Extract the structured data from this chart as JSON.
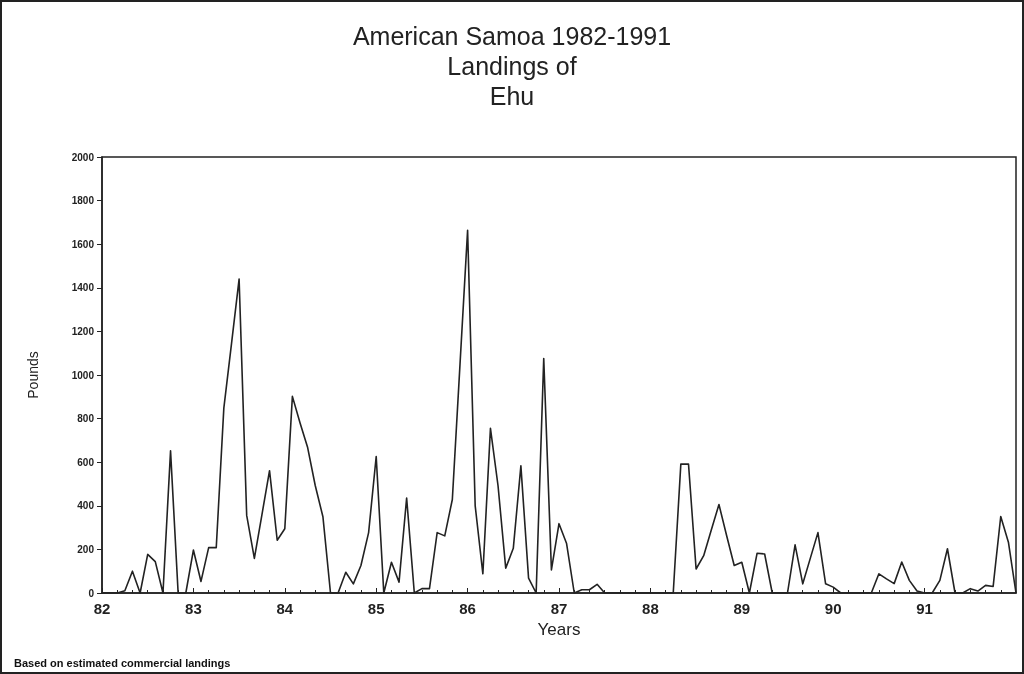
{
  "chart_data": {
    "type": "line",
    "title": "American Samoa 1982-1991\nLandings of\nEhu",
    "xlabel": "Years",
    "ylabel": "Pounds",
    "annotations": [
      "Based on estimated commercial landings"
    ],
    "x": [
      82,
      82.083,
      82.167,
      82.25,
      82.333,
      82.417,
      82.5,
      82.583,
      82.667,
      82.75,
      82.833,
      82.917,
      83,
      83.083,
      83.167,
      83.25,
      83.333,
      83.417,
      83.5,
      83.583,
      83.667,
      83.75,
      83.833,
      83.917,
      84,
      84.083,
      84.167,
      84.25,
      84.333,
      84.417,
      84.5,
      84.583,
      84.667,
      84.75,
      84.833,
      84.917,
      85,
      85.083,
      85.167,
      85.25,
      85.333,
      85.417,
      85.5,
      85.583,
      85.667,
      85.75,
      85.833,
      85.917,
      86,
      86.083,
      86.167,
      86.25,
      86.333,
      86.417,
      86.5,
      86.583,
      86.667,
      86.75,
      86.833,
      86.917,
      87,
      87.083,
      87.167,
      87.25,
      87.333,
      87.417,
      87.5,
      87.583,
      87.667,
      87.75,
      87.833,
      87.917,
      88,
      88.083,
      88.167,
      88.25,
      88.333,
      88.417,
      88.5,
      88.583,
      88.667,
      88.75,
      88.833,
      88.917,
      89,
      89.083,
      89.167,
      89.25,
      89.333,
      89.417,
      89.5,
      89.583,
      89.667,
      89.75,
      89.833,
      89.917,
      90,
      90.083,
      90.167,
      90.25,
      90.333,
      90.417,
      90.5,
      90.583,
      90.667,
      90.75,
      90.833,
      90.917,
      91,
      91.083,
      91.167,
      91.25,
      91.333,
      91.417,
      91.5,
      91.583,
      91.667,
      91.75,
      91.833,
      91.917,
      92
    ],
    "series": [
      {
        "color": "#222222",
        "values": [
          0,
          0,
          0,
          10,
          100,
          0,
          177,
          144,
          0,
          652,
          0,
          0,
          197,
          53,
          208,
          208,
          848,
          1144,
          1440,
          356,
          159,
          360,
          561,
          242,
          295,
          902,
          780,
          667,
          493,
          350,
          0,
          0,
          95,
          42,
          126,
          277,
          626,
          0,
          141,
          50,
          436,
          0,
          20,
          20,
          277,
          262,
          429,
          1050,
          1664,
          400,
          88,
          755,
          492,
          114,
          205,
          583,
          68,
          0,
          1076,
          106,
          318,
          227,
          0,
          15,
          15,
          40,
          0,
          0,
          0,
          0,
          0,
          0,
          0,
          0,
          0,
          0,
          591,
          591,
          110,
          171,
          290,
          406,
          265,
          126,
          141,
          0,
          182,
          179,
          0,
          0,
          0,
          221,
          42,
          160,
          277,
          42,
          27,
          0,
          0,
          0,
          0,
          0,
          88,
          65,
          43,
          142,
          58,
          9,
          0,
          0,
          58,
          203,
          0,
          0,
          20,
          9,
          35,
          30,
          351,
          233,
          0
        ]
      }
    ],
    "xlim": [
      82,
      92
    ],
    "xticks": [
      82,
      83,
      84,
      85,
      86,
      87,
      88,
      89,
      90,
      91
    ],
    "ylim": [
      0,
      2000
    ],
    "yticks": [
      0,
      200,
      400,
      600,
      800,
      1000,
      1200,
      1400,
      1600,
      1800,
      2000
    ],
    "grid": false,
    "marker": "none",
    "line_style": "solid"
  }
}
